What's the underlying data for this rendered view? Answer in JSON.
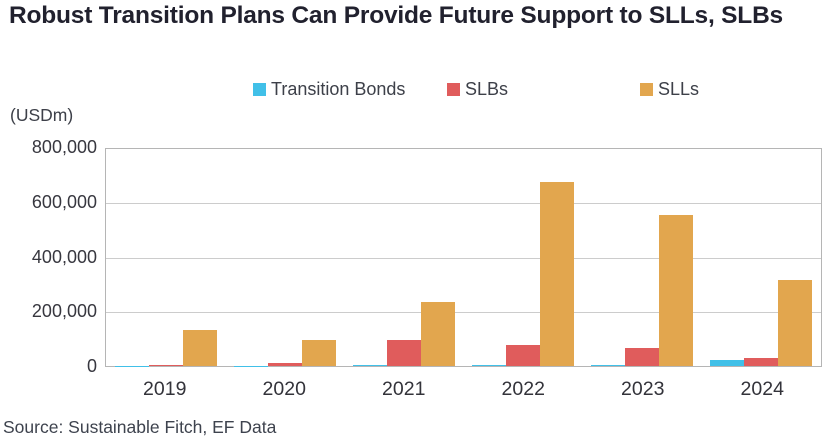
{
  "title": "Robust Transition Plans Can Provide Future Support to SLLs, SLBs",
  "unit_label": "(USDm)",
  "source": "Source: Sustainable Fitch, EF Data",
  "colors": {
    "transition_bonds": "#41c0e8",
    "slbs": "#e05c5c",
    "slls": "#e2a64e",
    "title_text": "#21212e",
    "gridline": "#cccccc"
  },
  "legend": [
    {
      "label": "Transition Bonds",
      "color": "#41c0e8"
    },
    {
      "label": "SLBs",
      "color": "#e05c5c"
    },
    {
      "label": "SLLs",
      "color": "#e2a64e"
    }
  ],
  "chart_data": {
    "type": "bar",
    "title": "Robust Transition Plans Can Provide Future Support to SLLs, SLBs",
    "xlabel": "",
    "ylabel": "(USDm)",
    "categories": [
      "2019",
      "2020",
      "2021",
      "2022",
      "2023",
      "2024"
    ],
    "series": [
      {
        "name": "Transition Bonds",
        "color": "#41c0e8",
        "values": [
          500,
          1000,
          2500,
          3000,
          2500,
          22000
        ]
      },
      {
        "name": "SLBs",
        "color": "#e05c5c",
        "values": [
          4000,
          11000,
          95000,
          76000,
          65000,
          30000
        ]
      },
      {
        "name": "SLLs",
        "color": "#e2a64e",
        "values": [
          132000,
          96000,
          235000,
          680000,
          555000,
          316000
        ]
      }
    ],
    "ylim": [
      0,
      800000
    ],
    "yticks": [
      "800,000",
      "600,000",
      "400,000",
      "200,000",
      "0"
    ],
    "grid": true,
    "legend_position": "top"
  }
}
